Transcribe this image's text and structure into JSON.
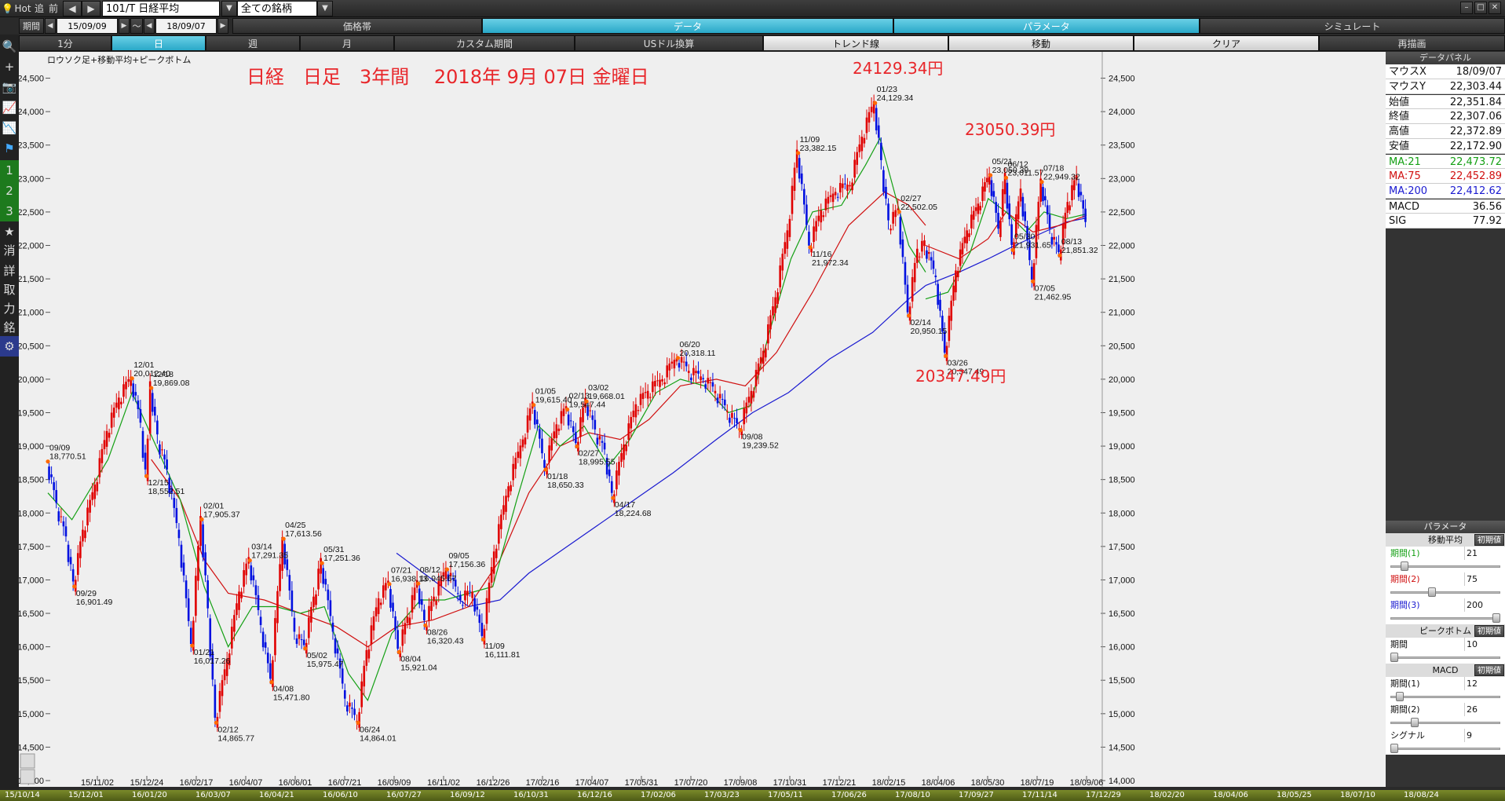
{
  "toolbar": {
    "hot": "Hot",
    "tsui": "追",
    "zen": "前",
    "symbol": "101/T 日経平均",
    "universe": "全ての銘柄",
    "kikan_label": "期間",
    "start_date": "15/09/09",
    "tilde": "～",
    "end_date": "18/09/07",
    "tabs": [
      "価格帯",
      "データ",
      "パラメータ",
      "シミュレート"
    ],
    "active_tabs": [
      1,
      2
    ]
  },
  "toolbar3": {
    "items": [
      "1分",
      "日",
      "週",
      "月",
      "カスタム期間",
      "USドル換算",
      "トレンド線",
      "移動",
      "クリア",
      "再描画"
    ]
  },
  "sidebar": {
    "items": [
      {
        "icon": "search-icon",
        "glyph": "🔍"
      },
      {
        "icon": "plus-icon",
        "glyph": "+"
      },
      {
        "icon": "camera-icon",
        "glyph": "📷"
      },
      {
        "icon": "chart-line-icon",
        "glyph": "📈"
      },
      {
        "icon": "chart-icon",
        "glyph": "📉"
      },
      {
        "icon": "flag-icon",
        "glyph": "⚑"
      },
      {
        "icon": "one-icon",
        "glyph": "1"
      },
      {
        "icon": "two-icon",
        "glyph": "2"
      },
      {
        "icon": "three-icon",
        "glyph": "3"
      },
      {
        "icon": "star-icon",
        "glyph": "★"
      },
      {
        "icon": "delete-icon",
        "glyph": "消"
      },
      {
        "icon": "detail-icon",
        "glyph": "詳"
      },
      {
        "icon": "trade-icon",
        "glyph": "取"
      },
      {
        "icon": "power-icon",
        "glyph": "力"
      },
      {
        "icon": "stock-icon",
        "glyph": "銘"
      },
      {
        "icon": "gear-icon",
        "glyph": "⚙"
      }
    ]
  },
  "panel": {
    "title": "データパネル",
    "rows": [
      {
        "k": "マウスX",
        "v": "18/09/07"
      },
      {
        "k": "マウスY",
        "v": "22,303.44"
      },
      {
        "k": "始値",
        "v": "22,351.84"
      },
      {
        "k": "終値",
        "v": "22,307.06"
      },
      {
        "k": "高値",
        "v": "22,372.89"
      },
      {
        "k": "安値",
        "v": "22,172.90"
      },
      {
        "k": "MA:21",
        "v": "22,473.72",
        "color": "#14a014"
      },
      {
        "k": "MA:75",
        "v": "22,452.89",
        "color": "#d01010"
      },
      {
        "k": "MA:200",
        "v": "22,412.62",
        "color": "#1a1ad0"
      },
      {
        "k": "MACD",
        "v": "36.56"
      },
      {
        "k": "SIG",
        "v": "77.92"
      }
    ],
    "params_title": "パラメータ",
    "ma_title": "移動平均",
    "init": "初期値",
    "ma_rows": [
      {
        "label": "期間(1)",
        "value": "21",
        "color": "#14a014",
        "pos": 0.1
      },
      {
        "label": "期間(2)",
        "value": "75",
        "color": "#d01010",
        "pos": 0.37
      },
      {
        "label": "期間(3)",
        "value": "200",
        "color": "#1a1ad0",
        "pos": 1.0
      }
    ],
    "pb_title": "ピークボトム",
    "pb_rows": [
      {
        "label": "期間",
        "value": "10",
        "pos": 0.0
      }
    ],
    "macd_title": "MACD",
    "macd_rows": [
      {
        "label": "期間(1)",
        "value": "12",
        "pos": 0.05
      },
      {
        "label": "期間(2)",
        "value": "26",
        "pos": 0.2
      },
      {
        "label": "シグナル",
        "value": "9",
        "pos": 0.0
      }
    ]
  },
  "chart_data": {
    "type": "line",
    "subtitle": "ロウソク足+移動平均+ピークボトム",
    "title": "日経　日足　3年間　 2018年 9月 07日 金曜日",
    "ylim": [
      14000,
      24800
    ],
    "yticks": [
      14000,
      14500,
      15000,
      15500,
      16000,
      16500,
      17000,
      17500,
      18000,
      18500,
      19000,
      19500,
      20000,
      20500,
      21000,
      21500,
      22000,
      22500,
      23000,
      23500,
      24000,
      24500
    ],
    "xticks": [
      "15/11/02",
      "15/12/24",
      "16/02/17",
      "16/04/07",
      "16/06/01",
      "16/07/21",
      "16/09/09",
      "16/11/02",
      "16/12/26",
      "17/02/16",
      "17/04/07",
      "17/05/31",
      "17/07/20",
      "17/09/08",
      "17/10/31",
      "17/12/21",
      "18/02/15",
      "18/04/06",
      "18/05/30",
      "18/07/19",
      "18/09/06"
    ],
    "ruler_ticks": [
      "15/10/14",
      "15/12/01",
      "16/01/20",
      "16/03/07",
      "16/04/21",
      "16/06/10",
      "16/07/27",
      "16/09/12",
      "16/10/31",
      "16/12/16",
      "17/02/06",
      "17/03/23",
      "17/05/11",
      "17/06/26",
      "17/08/10",
      "17/09/27",
      "17/11/14",
      "17/12/29",
      "18/02/20",
      "18/04/06",
      "18/05/25",
      "18/07/10",
      "18/08/24"
    ],
    "x_index_range": [
      0,
      730
    ],
    "price_path": [
      [
        0,
        18770
      ],
      [
        8,
        18100
      ],
      [
        16,
        17600
      ],
      [
        22,
        16901
      ],
      [
        30,
        17700
      ],
      [
        40,
        18400
      ],
      [
        50,
        19200
      ],
      [
        60,
        19700
      ],
      [
        70,
        20012
      ],
      [
        78,
        19300
      ],
      [
        82,
        18552
      ],
      [
        86,
        19869
      ],
      [
        92,
        19100
      ],
      [
        100,
        18600
      ],
      [
        110,
        17600
      ],
      [
        120,
        16017
      ],
      [
        128,
        17905
      ],
      [
        134,
        16500
      ],
      [
        140,
        14865
      ],
      [
        150,
        15800
      ],
      [
        160,
        16800
      ],
      [
        168,
        17291
      ],
      [
        178,
        16300
      ],
      [
        186,
        15472
      ],
      [
        196,
        17614
      ],
      [
        206,
        16200
      ],
      [
        214,
        15975
      ],
      [
        222,
        16700
      ],
      [
        228,
        17251
      ],
      [
        238,
        16200
      ],
      [
        248,
        15200
      ],
      [
        258,
        14864
      ],
      [
        266,
        15900
      ],
      [
        276,
        16700
      ],
      [
        284,
        16938
      ],
      [
        292,
        15921
      ],
      [
        300,
        16400
      ],
      [
        308,
        16945
      ],
      [
        314,
        16320
      ],
      [
        322,
        16700
      ],
      [
        332,
        17156
      ],
      [
        344,
        16700
      ],
      [
        354,
        16800
      ],
      [
        362,
        16111
      ],
      [
        372,
        17400
      ],
      [
        384,
        18400
      ],
      [
        396,
        19100
      ],
      [
        404,
        19615
      ],
      [
        414,
        18650
      ],
      [
        424,
        19300
      ],
      [
        432,
        19547
      ],
      [
        440,
        18996
      ],
      [
        448,
        19668
      ],
      [
        456,
        19200
      ],
      [
        464,
        18900
      ],
      [
        470,
        18225
      ],
      [
        480,
        19000
      ],
      [
        490,
        19600
      ],
      [
        500,
        19800
      ],
      [
        512,
        20000
      ],
      [
        524,
        20318
      ],
      [
        534,
        20100
      ],
      [
        546,
        20000
      ],
      [
        556,
        19800
      ],
      [
        566,
        19500
      ],
      [
        576,
        19240
      ],
      [
        586,
        19800
      ],
      [
        596,
        20400
      ],
      [
        606,
        21200
      ],
      [
        616,
        22200
      ],
      [
        624,
        23382
      ],
      [
        634,
        21972
      ],
      [
        644,
        22500
      ],
      [
        656,
        22800
      ],
      [
        668,
        22900
      ],
      [
        678,
        23600
      ],
      [
        688,
        24129
      ],
      [
        694,
        23200
      ],
      [
        700,
        22300
      ],
      [
        708,
        22502
      ],
      [
        716,
        20950
      ],
      [
        724,
        21900
      ],
      [
        730,
        22000
      ]
    ],
    "price_path_2": [
      [
        0,
        22000
      ],
      [
        10,
        21500
      ],
      [
        18,
        20347
      ],
      [
        28,
        21600
      ],
      [
        38,
        22200
      ],
      [
        48,
        22600
      ],
      [
        58,
        23050
      ],
      [
        66,
        22200
      ],
      [
        72,
        23011
      ],
      [
        78,
        21932
      ],
      [
        86,
        22800
      ],
      [
        96,
        21463
      ],
      [
        104,
        22949
      ],
      [
        112,
        22200
      ],
      [
        120,
        21851
      ],
      [
        128,
        22600
      ],
      [
        136,
        23000
      ],
      [
        144,
        22300
      ]
    ],
    "annotations": [
      {
        "x": 0,
        "y": 18770,
        "date": "09/09",
        "price": "18,770.51",
        "pos": "above"
      },
      {
        "x": 22,
        "y": 16901,
        "date": "09/29",
        "price": "16,901.49",
        "pos": "below"
      },
      {
        "x": 70,
        "y": 20012,
        "date": "12/01",
        "price": "20,012.40",
        "pos": "above"
      },
      {
        "x": 82,
        "y": 18552,
        "date": "12/15",
        "price": "18,552.51",
        "pos": "below"
      },
      {
        "x": 86,
        "y": 19869,
        "date": "12/18",
        "price": "19,869.08",
        "pos": "above"
      },
      {
        "x": 120,
        "y": 16017,
        "date": "01/21",
        "price": "16,017.26",
        "pos": "below"
      },
      {
        "x": 128,
        "y": 17905,
        "date": "02/01",
        "price": "17,905.37",
        "pos": "above"
      },
      {
        "x": 140,
        "y": 14865,
        "date": "02/12",
        "price": "14,865.77",
        "pos": "below"
      },
      {
        "x": 168,
        "y": 17291,
        "date": "03/14",
        "price": "17,291.35",
        "pos": "above"
      },
      {
        "x": 186,
        "y": 15472,
        "date": "04/08",
        "price": "15,471.80",
        "pos": "below"
      },
      {
        "x": 196,
        "y": 17614,
        "date": "04/25",
        "price": "17,613.56",
        "pos": "above"
      },
      {
        "x": 214,
        "y": 15975,
        "date": "05/02",
        "price": "15,975.47",
        "pos": "below"
      },
      {
        "x": 228,
        "y": 17251,
        "date": "05/31",
        "price": "17,251.36",
        "pos": "above"
      },
      {
        "x": 258,
        "y": 14864,
        "date": "06/24",
        "price": "14,864.01",
        "pos": "below"
      },
      {
        "x": 284,
        "y": 16938,
        "date": "07/21",
        "price": "16,938.13",
        "pos": "above"
      },
      {
        "x": 292,
        "y": 15921,
        "date": "08/04",
        "price": "15,921.04",
        "pos": "below"
      },
      {
        "x": 308,
        "y": 16945,
        "date": "08/12",
        "price": "16,945.67",
        "pos": "above"
      },
      {
        "x": 314,
        "y": 16320,
        "date": "08/26",
        "price": "16,320.43",
        "pos": "below"
      },
      {
        "x": 332,
        "y": 17156,
        "date": "09/05",
        "price": "17,156.36",
        "pos": "above"
      },
      {
        "x": 362,
        "y": 16111,
        "date": "11/09",
        "price": "16,111.81",
        "pos": "below"
      },
      {
        "x": 404,
        "y": 19615,
        "date": "01/05",
        "price": "19,615.40",
        "pos": "above"
      },
      {
        "x": 414,
        "y": 18650,
        "date": "01/18",
        "price": "18,650.33",
        "pos": "below"
      },
      {
        "x": 432,
        "y": 19547,
        "date": "02/13",
        "price": "19,547.44",
        "pos": "above"
      },
      {
        "x": 440,
        "y": 18996,
        "date": "02/27",
        "price": "18,995.55",
        "pos": "below"
      },
      {
        "x": 448,
        "y": 19668,
        "date": "03/02",
        "price": "19,668.01",
        "pos": "above"
      },
      {
        "x": 470,
        "y": 18225,
        "date": "04/17",
        "price": "18,224.68",
        "pos": "below"
      },
      {
        "x": 524,
        "y": 20318,
        "date": "06/20",
        "price": "20,318.11",
        "pos": "above"
      },
      {
        "x": 576,
        "y": 19240,
        "date": "09/08",
        "price": "19,239.52",
        "pos": "below"
      },
      {
        "x": 624,
        "y": 23382,
        "date": "11/09",
        "price": "23,382.15",
        "pos": "above"
      },
      {
        "x": 634,
        "y": 21972,
        "date": "11/16",
        "price": "21,972.34",
        "pos": "below"
      },
      {
        "x": 688,
        "y": 24129,
        "date": "01/23",
        "price": "24,129.34",
        "pos": "above"
      },
      {
        "x": 708,
        "y": 22502,
        "date": "02/27",
        "price": "22,502.05",
        "pos": "above"
      },
      {
        "x": 716,
        "y": 20950,
        "date": "02/14",
        "price": "20,950.15",
        "pos": "below"
      }
    ],
    "annotations_2": [
      {
        "x": 18,
        "y": 20347,
        "date": "03/26",
        "price": "20,347.49",
        "pos": "below"
      },
      {
        "x": 58,
        "y": 23050,
        "date": "05/21",
        "price": "23,050.39",
        "pos": "above"
      },
      {
        "x": 72,
        "y": 23011,
        "date": "06/12",
        "price": "23,011.57",
        "pos": "above"
      },
      {
        "x": 78,
        "y": 21932,
        "date": "05/30",
        "price": "21,931.65",
        "pos": "above"
      },
      {
        "x": 96,
        "y": 21463,
        "date": "07/05",
        "price": "21,462.95",
        "pos": "below"
      },
      {
        "x": 104,
        "y": 22949,
        "date": "07/18",
        "price": "22,949.32",
        "pos": "above"
      },
      {
        "x": 120,
        "y": 21851,
        "date": "08/13",
        "price": "21,851.32",
        "pos": "above"
      }
    ],
    "big_labels": [
      {
        "text": "24129.34円"
      },
      {
        "text": "23050.39円"
      },
      {
        "text": "20347.49円"
      }
    ],
    "ma21": [
      [
        0,
        18300
      ],
      [
        20,
        17900
      ],
      [
        50,
        18800
      ],
      [
        70,
        19800
      ],
      [
        90,
        19000
      ],
      [
        110,
        18200
      ],
      [
        130,
        16900
      ],
      [
        150,
        16000
      ],
      [
        170,
        16600
      ],
      [
        190,
        16600
      ],
      [
        210,
        16500
      ],
      [
        230,
        16600
      ],
      [
        250,
        15600
      ],
      [
        266,
        15200
      ],
      [
        286,
        16200
      ],
      [
        310,
        16700
      ],
      [
        330,
        16700
      ],
      [
        350,
        16800
      ],
      [
        370,
        16900
      ],
      [
        390,
        18200
      ],
      [
        408,
        19300
      ],
      [
        426,
        19000
      ],
      [
        446,
        19300
      ],
      [
        466,
        18700
      ],
      [
        484,
        19100
      ],
      [
        506,
        19800
      ],
      [
        526,
        20000
      ],
      [
        546,
        19900
      ],
      [
        566,
        19500
      ],
      [
        584,
        19600
      ],
      [
        600,
        20700
      ],
      [
        618,
        21800
      ],
      [
        636,
        22500
      ],
      [
        660,
        22600
      ],
      [
        680,
        23200
      ],
      [
        692,
        23600
      ],
      [
        704,
        22800
      ],
      [
        716,
        22000
      ],
      [
        730,
        21600
      ]
    ],
    "ma21_2": [
      [
        0,
        21200
      ],
      [
        20,
        21300
      ],
      [
        40,
        21900
      ],
      [
        56,
        22700
      ],
      [
        72,
        22500
      ],
      [
        90,
        22200
      ],
      [
        106,
        22500
      ],
      [
        126,
        22400
      ],
      [
        144,
        22470
      ]
    ],
    "ma75": [
      [
        86,
        18800
      ],
      [
        110,
        18200
      ],
      [
        130,
        17300
      ],
      [
        150,
        16800
      ],
      [
        180,
        16700
      ],
      [
        210,
        16500
      ],
      [
        240,
        16300
      ],
      [
        266,
        16000
      ],
      [
        290,
        16300
      ],
      [
        320,
        16400
      ],
      [
        350,
        16600
      ],
      [
        376,
        17300
      ],
      [
        400,
        18300
      ],
      [
        426,
        19000
      ],
      [
        450,
        19200
      ],
      [
        476,
        19100
      ],
      [
        500,
        19400
      ],
      [
        526,
        19900
      ],
      [
        556,
        20000
      ],
      [
        580,
        19900
      ],
      [
        606,
        20400
      ],
      [
        636,
        21300
      ],
      [
        666,
        22300
      ],
      [
        696,
        22800
      ],
      [
        716,
        22600
      ],
      [
        730,
        22300
      ]
    ],
    "ma75_2": [
      [
        0,
        22000
      ],
      [
        30,
        21800
      ],
      [
        56,
        22100
      ],
      [
        72,
        22500
      ],
      [
        96,
        22200
      ],
      [
        120,
        22300
      ],
      [
        144,
        22450
      ]
    ],
    "ma200": [
      [
        290,
        17400
      ],
      [
        320,
        17000
      ],
      [
        350,
        16600
      ],
      [
        376,
        16700
      ],
      [
        400,
        17100
      ],
      [
        440,
        17600
      ],
      [
        480,
        18100
      ],
      [
        520,
        18600
      ],
      [
        556,
        19100
      ],
      [
        586,
        19500
      ],
      [
        616,
        19800
      ],
      [
        650,
        20300
      ],
      [
        686,
        20700
      ],
      [
        716,
        21200
      ],
      [
        730,
        21400
      ]
    ],
    "ma200_2": [
      [
        0,
        21400
      ],
      [
        30,
        21600
      ],
      [
        56,
        21800
      ],
      [
        80,
        22000
      ],
      [
        106,
        22200
      ],
      [
        126,
        22350
      ],
      [
        144,
        22410
      ]
    ]
  }
}
